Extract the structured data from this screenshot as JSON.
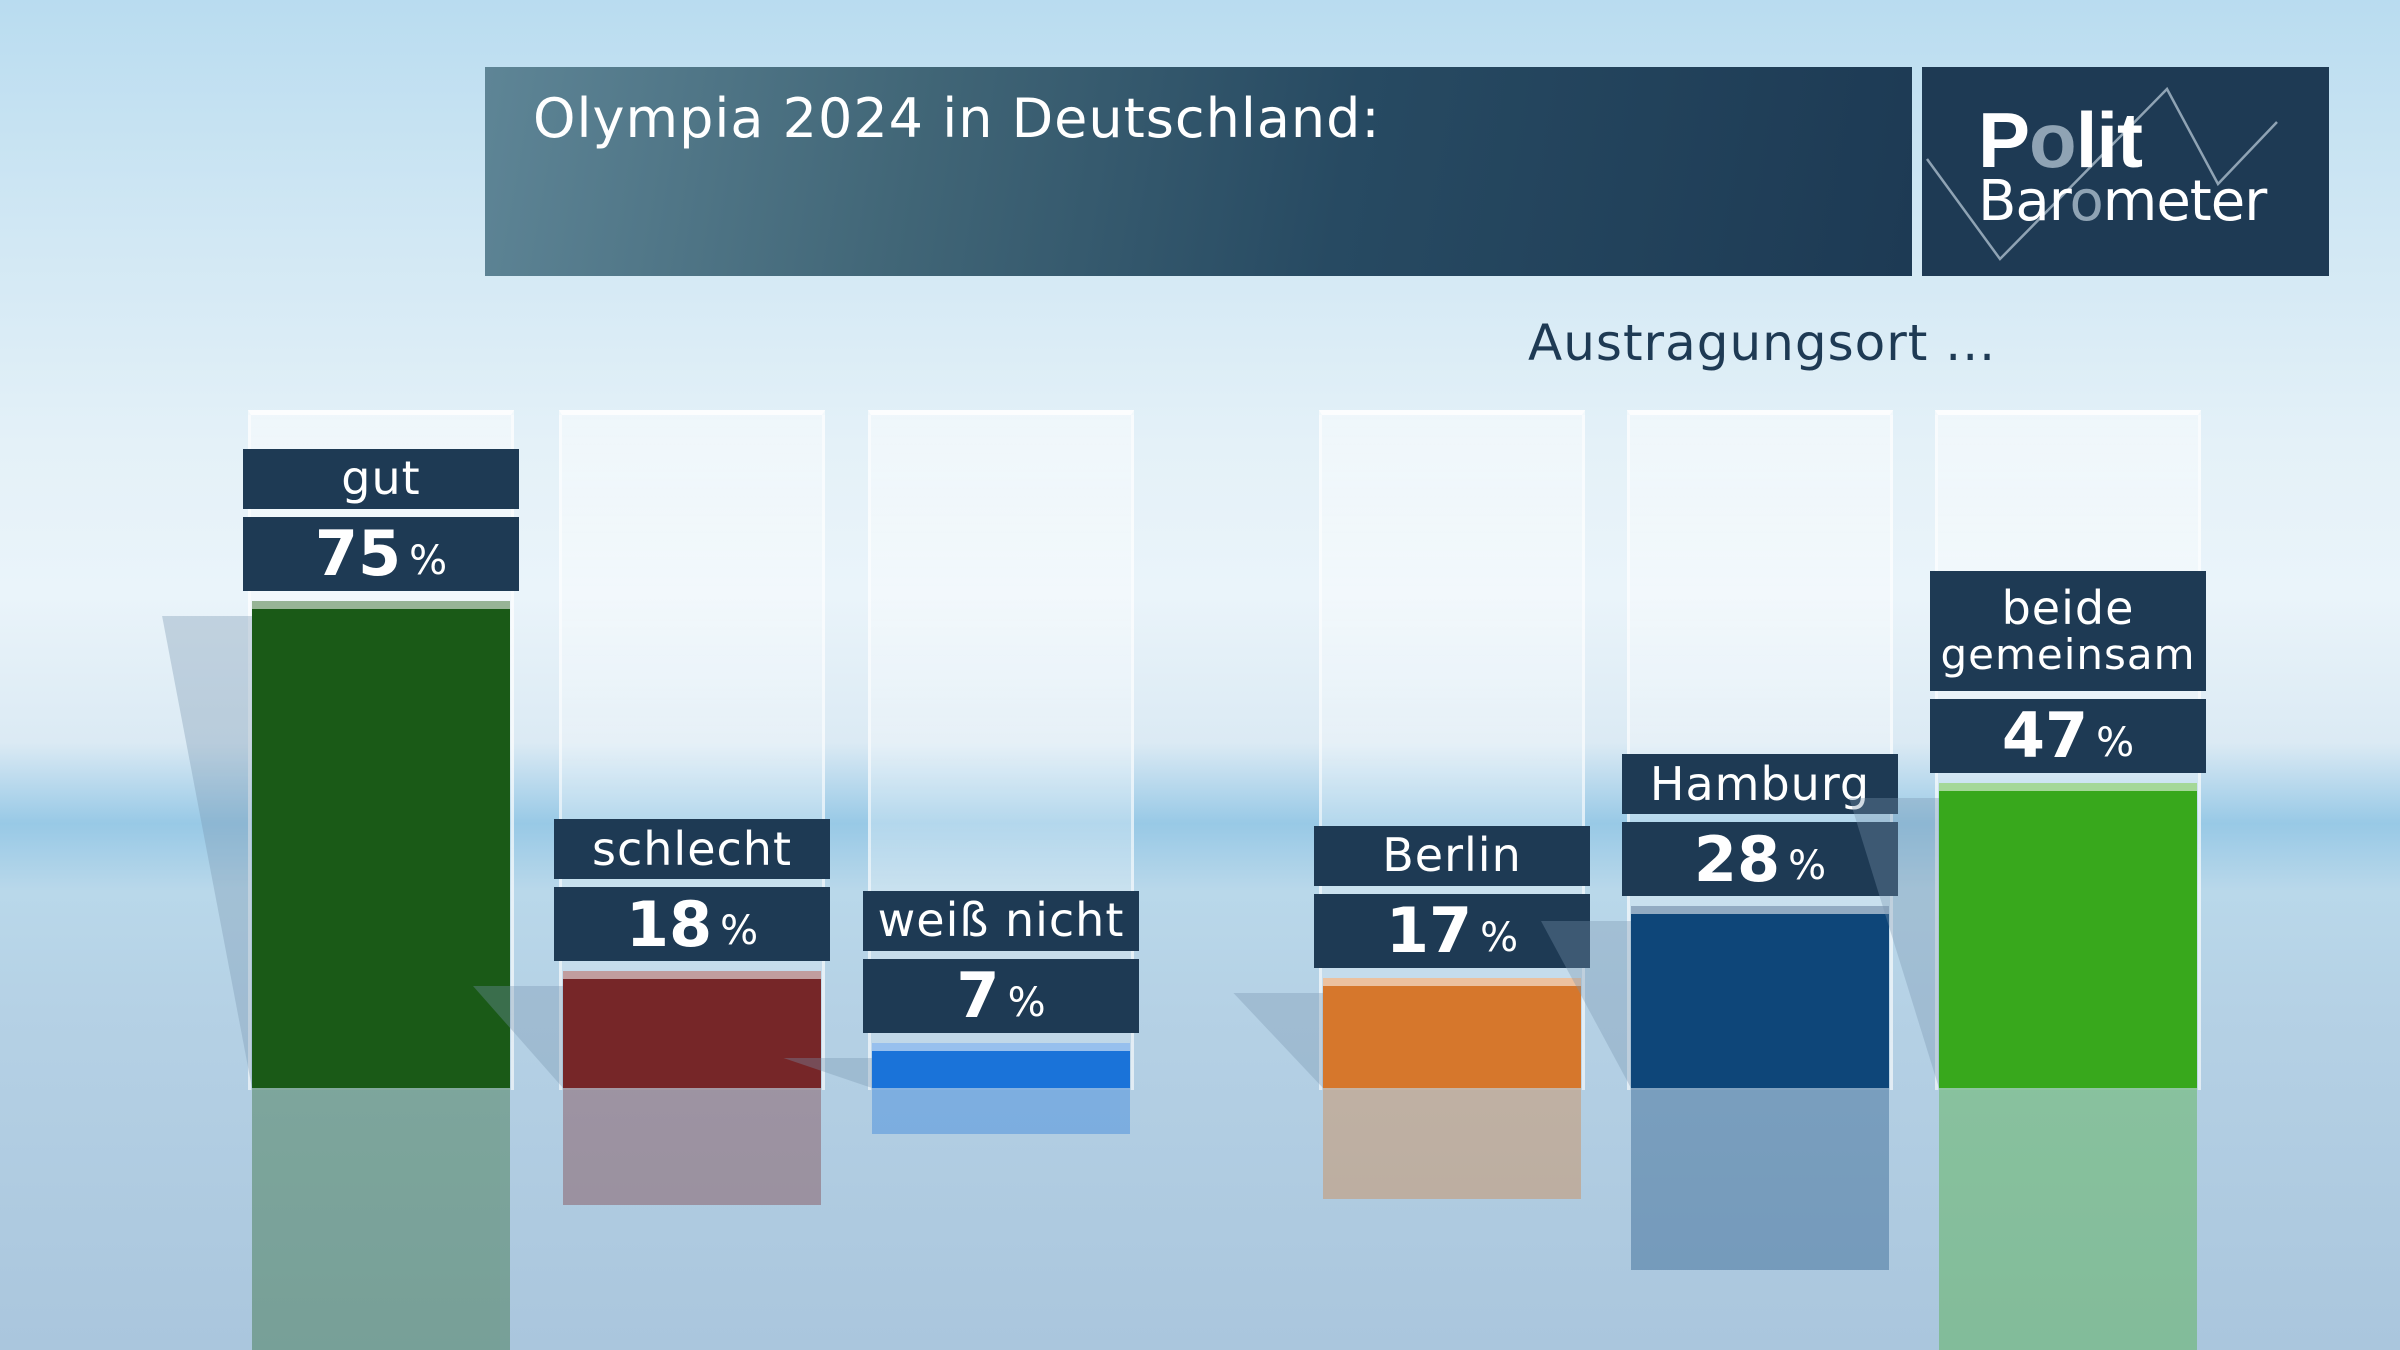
{
  "header": {
    "title": "Olympia 2024 in Deutschland:",
    "logo_line1_pre": "P",
    "logo_line1_o": "o",
    "logo_line1_post": "lit",
    "logo_line2_pre": "Bar",
    "logo_line2_o": "o",
    "logo_line2_post": "meter"
  },
  "percent_sign": "%",
  "chart_data": [
    {
      "type": "bar",
      "title": "Olympia 2024 in Deutschland:",
      "subtitle": "",
      "categories": [
        "gut",
        "schlecht",
        "weiß nicht"
      ],
      "values": [
        75,
        18,
        7
      ],
      "value_labels": [
        "75",
        "18",
        "7"
      ],
      "unit": "%",
      "colors": [
        "#1a5a17",
        "#762628",
        "#1a73d9"
      ],
      "ylim": [
        0,
        100
      ],
      "grid": false
    },
    {
      "type": "bar",
      "title": "Austragungsort ...",
      "categories": [
        "Berlin",
        "Hamburg",
        "beide gemeinsam"
      ],
      "category_lines": [
        [
          "Berlin"
        ],
        [
          "Hamburg"
        ],
        [
          "beide",
          "gemeinsam"
        ]
      ],
      "values": [
        17,
        28,
        47
      ],
      "value_labels": [
        "17",
        "28",
        "47"
      ],
      "unit": "%",
      "colors": [
        "#d6772c",
        "#0e4679",
        "#38a81c"
      ],
      "ylim": [
        0,
        100
      ],
      "grid": false
    }
  ],
  "colors": {
    "label_bg": "#1e3a54",
    "title_bg": "#1e3a54"
  }
}
